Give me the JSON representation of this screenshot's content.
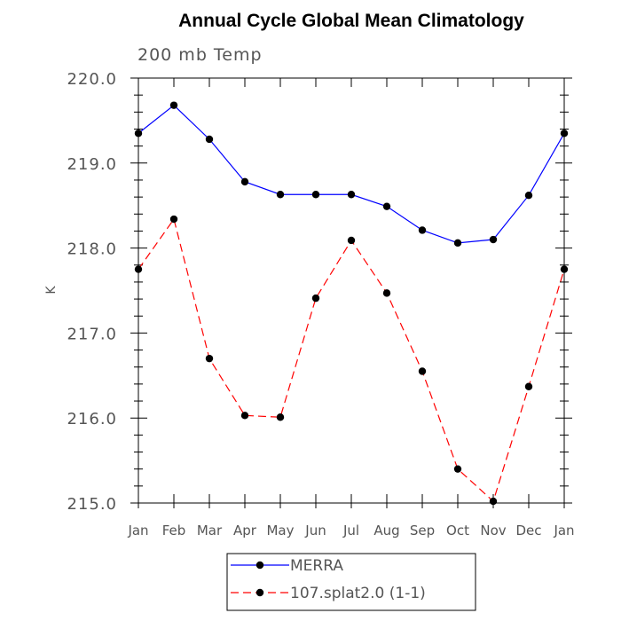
{
  "chart_data": {
    "type": "line",
    "title": "Annual Cycle Global Mean Climatology",
    "subtitle": "200 mb Temp",
    "xlabel": "",
    "ylabel": "K",
    "categories": [
      "Jan",
      "Feb",
      "Mar",
      "Apr",
      "May",
      "Jun",
      "Jul",
      "Aug",
      "Sep",
      "Oct",
      "Nov",
      "Dec",
      "Jan"
    ],
    "ylim": [
      215.0,
      220.0
    ],
    "yticks": [
      "215.0",
      "216.0",
      "217.0",
      "218.0",
      "219.0",
      "220.0"
    ],
    "grid": false,
    "legend_position": "bottom-center",
    "series": [
      {
        "name": "MERRA",
        "color": "#0000ff",
        "dash": "solid",
        "values": [
          219.35,
          219.68,
          219.28,
          218.78,
          218.63,
          218.63,
          218.63,
          218.49,
          218.21,
          218.06,
          218.1,
          218.62,
          219.35
        ]
      },
      {
        "name": "107.splat2.0 (1-1)",
        "color": "#ff0000",
        "dash": "dashed",
        "values": [
          217.75,
          218.34,
          216.7,
          216.03,
          216.01,
          217.41,
          218.09,
          217.47,
          216.55,
          215.4,
          215.02,
          216.37,
          217.75
        ]
      }
    ]
  }
}
